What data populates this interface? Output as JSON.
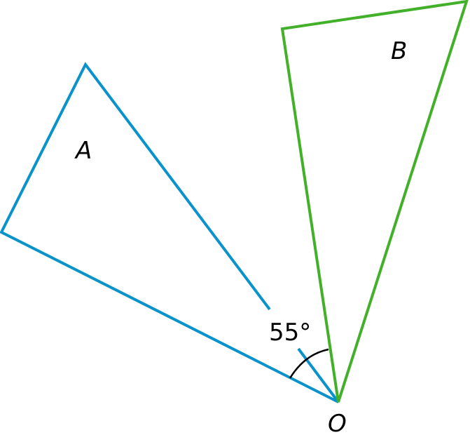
{
  "colors": {
    "figure_a": "#0a93cb",
    "figure_b": "#43b02a",
    "arc": "#000000"
  },
  "labels": {
    "a": "A",
    "b": "B",
    "origin": "O",
    "angle": "55°"
  }
}
